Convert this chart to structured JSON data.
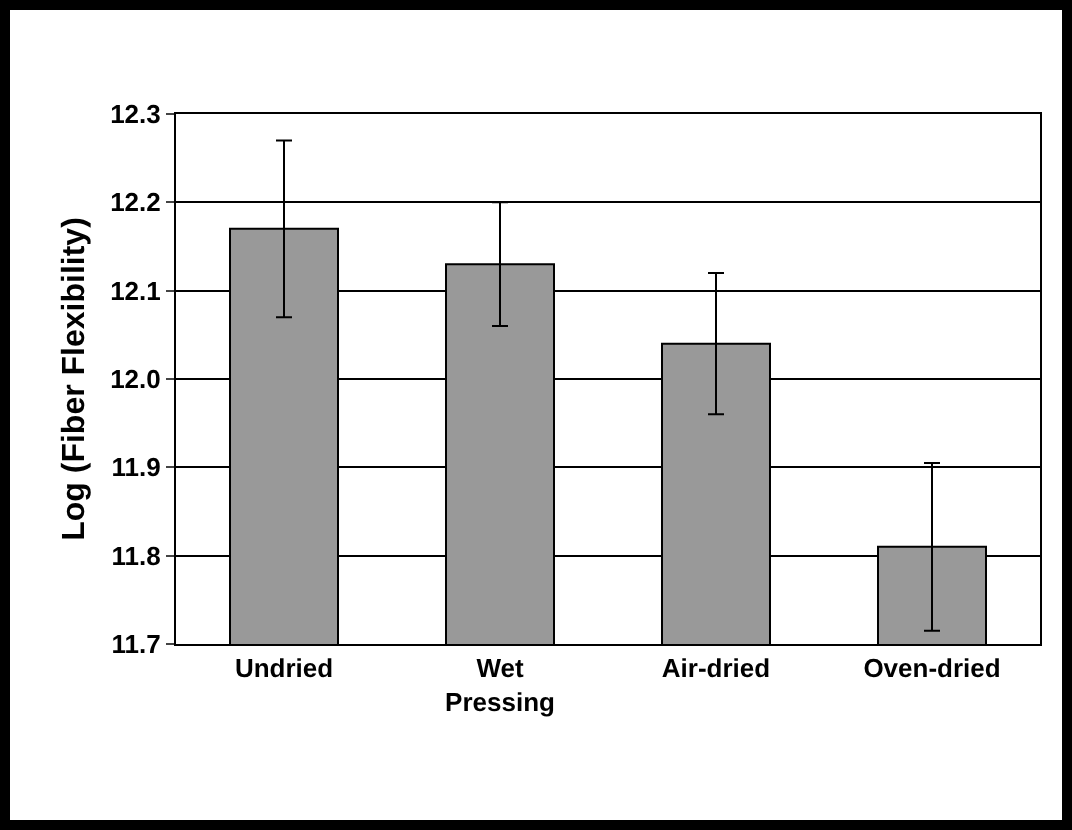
{
  "chart_data": {
    "type": "bar",
    "ylabel": "Log (Fiber Flexibility)",
    "categories": [
      "Undried",
      "Wet Pressing",
      "Air-dried",
      "Oven-dried"
    ],
    "values": [
      12.17,
      12.13,
      12.04,
      11.81
    ],
    "errors": [
      0.1,
      0.07,
      0.08,
      0.095
    ],
    "color": "#999999",
    "ylim": [
      11.7,
      12.3
    ],
    "yticks": [
      {
        "value": 11.7,
        "label": "11.7"
      },
      {
        "value": 11.8,
        "label": "11.8"
      },
      {
        "value": 11.9,
        "label": "11.9"
      },
      {
        "value": 12.0,
        "label": "12.0"
      },
      {
        "value": 12.1,
        "label": "12.1"
      },
      {
        "value": 12.2,
        "label": "12.2"
      },
      {
        "value": 12.3,
        "label": "12.3"
      }
    ],
    "grid": "y"
  }
}
